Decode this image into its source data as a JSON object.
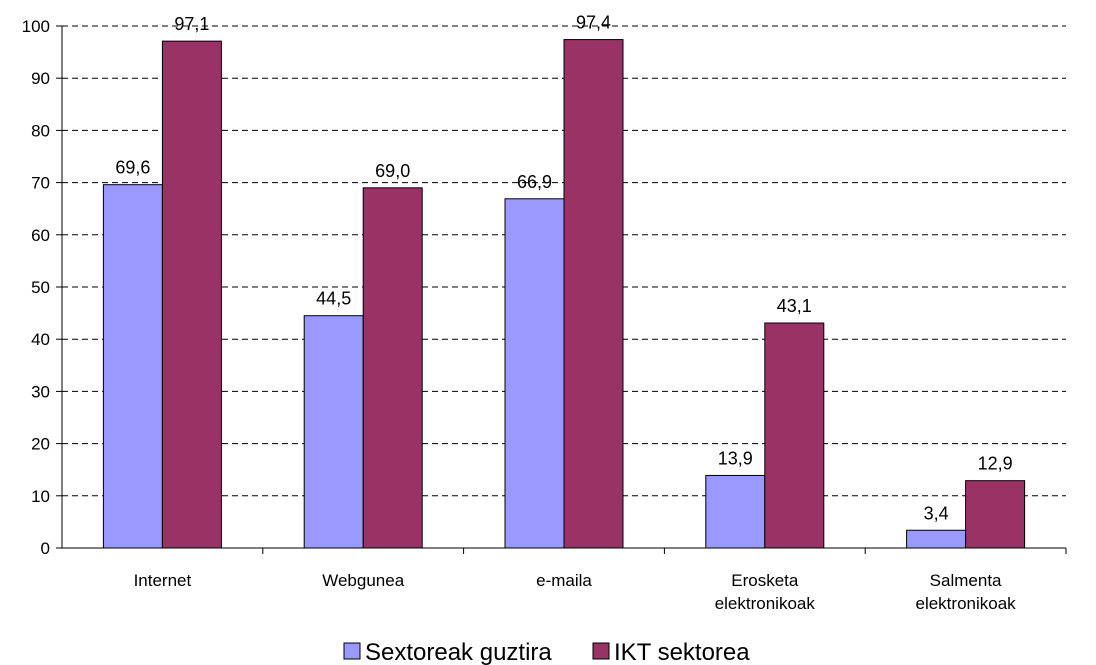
{
  "chart_data": {
    "type": "bar",
    "categories": [
      [
        "Internet"
      ],
      [
        "Webgunea"
      ],
      [
        "e-maila"
      ],
      [
        "Erosketa",
        "elektronikoak"
      ],
      [
        "Salmenta",
        "elektronikoak"
      ]
    ],
    "series": [
      {
        "name": "Sextoreak guztira",
        "color": "#9999ff",
        "values": [
          69.6,
          44.5,
          66.9,
          13.9,
          3.4
        ],
        "labels": [
          "69,6",
          "44,5",
          "66,9",
          "13,9",
          "3,4"
        ]
      },
      {
        "name": "IKT sektorea",
        "color": "#993366",
        "values": [
          97.1,
          69.0,
          97.4,
          43.1,
          12.9
        ],
        "labels": [
          "97,1",
          "69,0",
          "97,4",
          "43,1",
          "12,9"
        ]
      }
    ],
    "ylim": [
      0,
      100
    ],
    "yticks": [
      0,
      10,
      20,
      30,
      40,
      50,
      60,
      70,
      80,
      90,
      100
    ],
    "grid": true,
    "grid_style": "dashed",
    "legend_position": "bottom"
  }
}
